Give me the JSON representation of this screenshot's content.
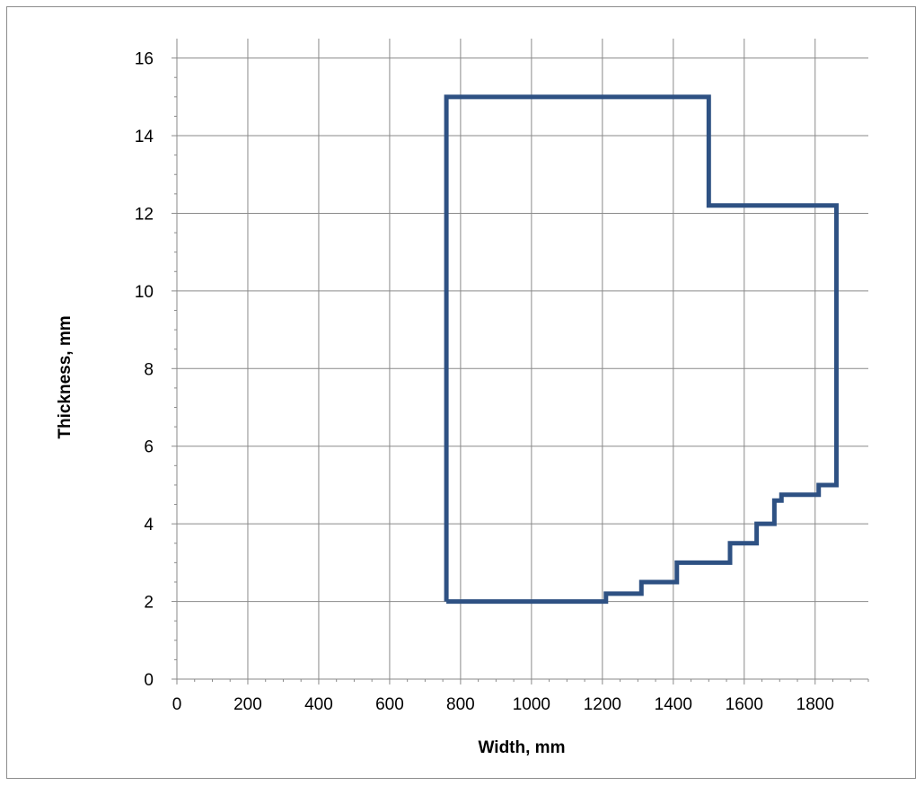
{
  "chart_data": {
    "type": "line",
    "xlabel": "Width, mm",
    "ylabel": "Thickness, mm",
    "xlim": [
      0,
      1950
    ],
    "ylim": [
      0,
      16.5
    ],
    "x_ticks": [
      "0",
      "200",
      "400",
      "600",
      "800",
      "1000",
      "1200",
      "1400",
      "1600",
      "1800"
    ],
    "y_ticks": [
      "0",
      "2",
      "4",
      "6",
      "8",
      "10",
      "12",
      "14",
      "16"
    ],
    "grid": true,
    "legend": "none",
    "series": [
      {
        "color": "#2e5183",
        "points": [
          [
            760,
            2
          ],
          [
            1210,
            2
          ],
          [
            1210,
            2.2
          ],
          [
            1310,
            2.2
          ],
          [
            1310,
            2.5
          ],
          [
            1410,
            2.5
          ],
          [
            1410,
            3.0
          ],
          [
            1560,
            3.0
          ],
          [
            1560,
            3.5
          ],
          [
            1635,
            3.5
          ],
          [
            1635,
            4.0
          ],
          [
            1685,
            4.0
          ],
          [
            1685,
            4.6
          ],
          [
            1705,
            4.6
          ],
          [
            1705,
            4.75
          ],
          [
            1810,
            4.75
          ],
          [
            1810,
            5.0
          ],
          [
            1860,
            5.0
          ],
          [
            1860,
            12.2
          ],
          [
            1500,
            12.2
          ],
          [
            1500,
            15.0
          ],
          [
            760,
            15.0
          ],
          [
            760,
            2
          ]
        ]
      }
    ]
  }
}
